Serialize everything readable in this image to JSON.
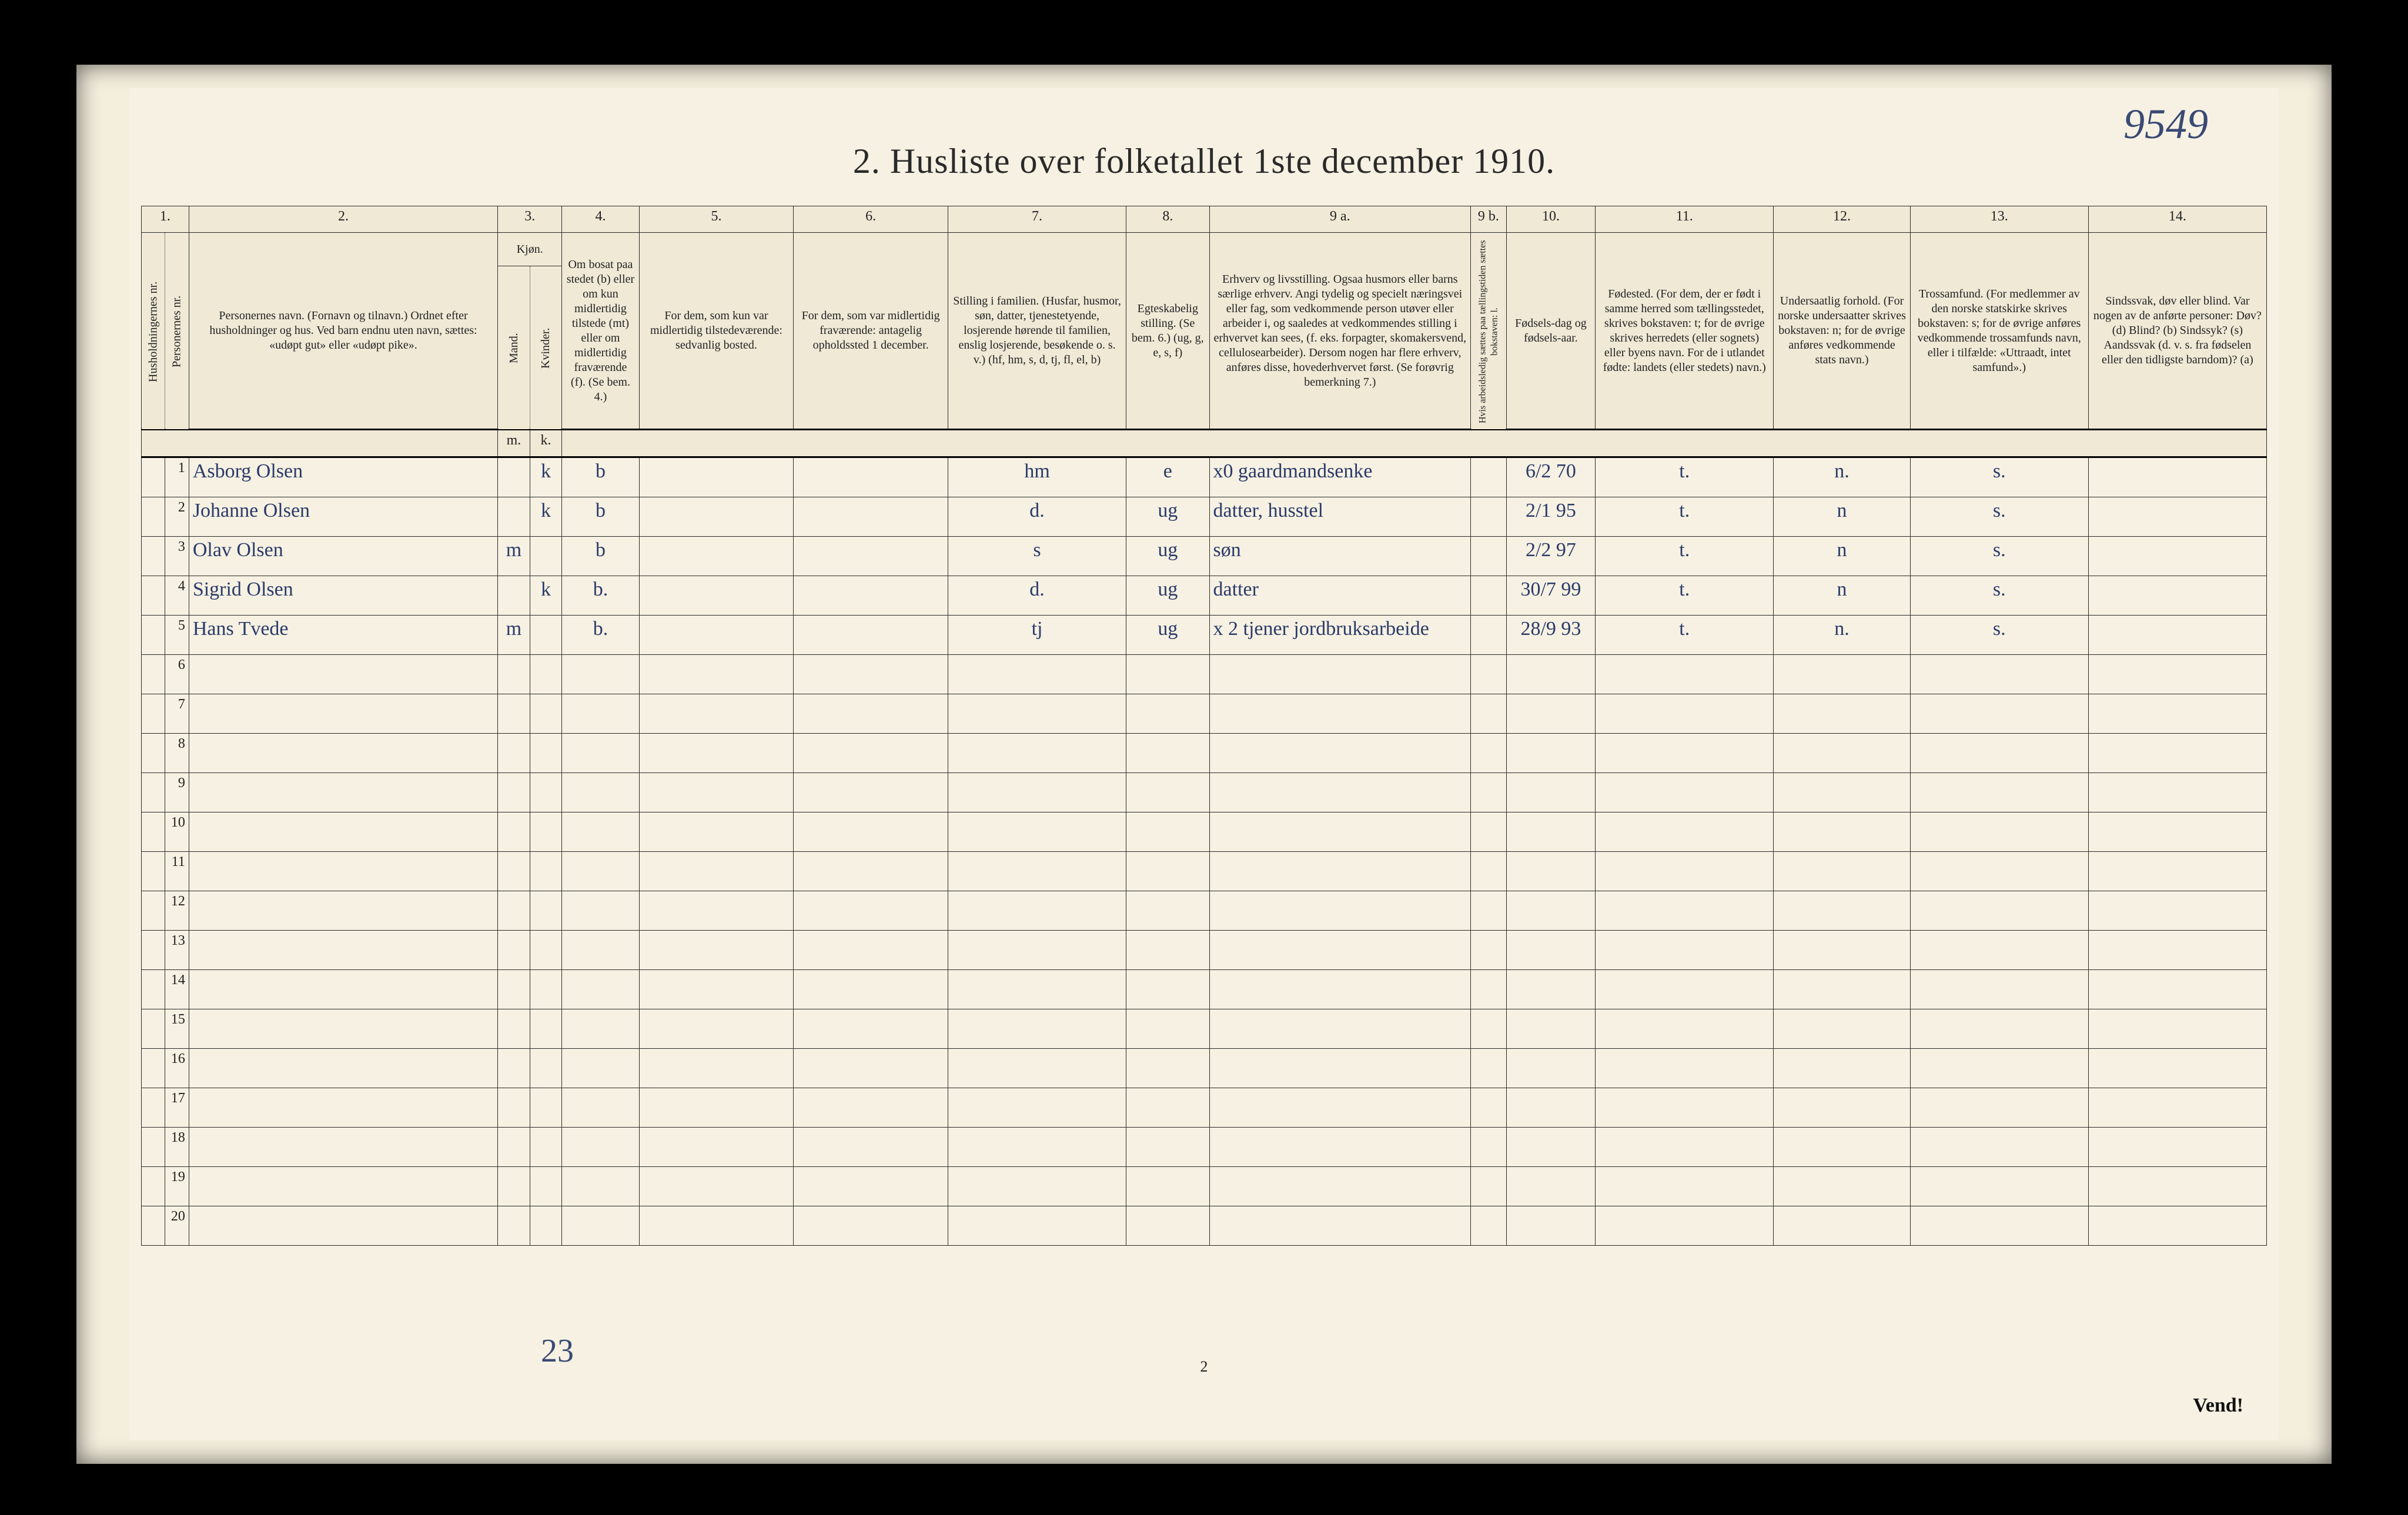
{
  "corner_number": "9549",
  "title": "2.  Husliste over folketallet 1ste december 1910.",
  "foot_number": "23",
  "page_number": "2",
  "vend": "Vend!",
  "col_nums": [
    "1.",
    "",
    "2.",
    "3.",
    "",
    "4.",
    "5.",
    "6.",
    "7.",
    "8.",
    "9 a.",
    "9 b.",
    "10.",
    "11.",
    "12.",
    "13.",
    "14."
  ],
  "headers": {
    "c1": "Husholdningernes nr.",
    "c1b": "Personernes nr.",
    "c2": "Personernes navn.\n(Fornavn og tilnavn.)\nOrdnet efter husholdninger og hus.\nVed barn endnu uten navn, sættes: «udøpt gut» eller «udøpt pike».",
    "c3": "Kjøn.",
    "c3a": "Mand.",
    "c3b": "Kvinder.",
    "c4": "Om bosat paa stedet (b) eller om kun midlertidig tilstede (mt) eller om midlertidig fraværende (f). (Se bem. 4.)",
    "c5": "For dem, som kun var midlertidig tilstedeværende:\nsedvanlig bosted.",
    "c6": "For dem, som var midlertidig fraværende:\nantagelig opholdssted 1 december.",
    "c7": "Stilling i familien.\n(Husfar, husmor, søn, datter, tjenestetyende, losjerende hørende til familien, enslig losjerende, besøkende o. s. v.)\n(hf, hm, s, d, tj, fl, el, b)",
    "c8": "Egteskabelig stilling. (Se bem. 6.)\n(ug, g, e, s, f)",
    "c9a": "Erhverv og livsstilling.\nOgsaa husmors eller barns særlige erhverv. Angi tydelig og specielt næringsvei eller fag, som vedkommende person utøver eller arbeider i, og saaledes at vedkommendes stilling i erhvervet kan sees, (f. eks. forpagter, skomakersvend, cellulosearbeider). Dersom nogen har flere erhverv, anføres disse, hovederhvervet først. (Se forøvrig bemerkning 7.)",
    "c9b": "Hvis arbeidsledig sættes paa tællingstiden sættes bokstaven: l.",
    "c10": "Fødsels-dag og fødsels-aar.",
    "c11": "Fødested.\n(For dem, der er født i samme herred som tællingsstedet, skrives bokstaven: t; for de øvrige skrives herredets (eller sognets) eller byens navn. For de i utlandet fødte: landets (eller stedets) navn.)",
    "c12": "Undersaatlig forhold.\n(For norske undersaatter skrives bokstaven: n; for de øvrige anføres vedkommende stats navn.)",
    "c13": "Trossamfund.\n(For medlemmer av den norske statskirke skrives bokstaven: s; for de øvrige anføres vedkommende trossamfunds navn, eller i tilfælde: «Uttraadt, intet samfund».)",
    "c14": "Sindssvak, døv eller blind.\nVar nogen av de anførte personer:\nDøv? (d)\nBlind? (b)\nSindssyk? (s)\nAandssvak (d. v. s. fra fødselen eller den tidligste barndom)? (a)"
  },
  "sub3": {
    "m": "m.",
    "k": "k."
  },
  "rows": [
    {
      "n": "1",
      "name": "Asborg Olsen",
      "m": "",
      "k": "k",
      "b": "b",
      "c5": "",
      "c6": "",
      "fam": "hm",
      "eg": "e",
      "erv": "x0  gaardmandsenke",
      "l": "",
      "fd": "6/2 70",
      "fs": "t.",
      "us": "n.",
      "tr": "s.",
      "sd": ""
    },
    {
      "n": "2",
      "name": "Johanne Olsen",
      "m": "",
      "k": "k",
      "b": "b",
      "c5": "",
      "c6": "",
      "fam": "d.",
      "eg": "ug",
      "erv": "datter, husstel",
      "l": "",
      "fd": "2/1 95",
      "fs": "t.",
      "us": "n",
      "tr": "s.",
      "sd": ""
    },
    {
      "n": "3",
      "name": "Olav Olsen",
      "m": "m",
      "k": "",
      "b": "b",
      "c5": "",
      "c6": "",
      "fam": "s",
      "eg": "ug",
      "erv": "søn",
      "l": "",
      "fd": "2/2 97",
      "fs": "t.",
      "us": "n",
      "tr": "s.",
      "sd": ""
    },
    {
      "n": "4",
      "name": "Sigrid Olsen",
      "m": "",
      "k": "k",
      "b": "b.",
      "c5": "",
      "c6": "",
      "fam": "d.",
      "eg": "ug",
      "erv": "datter",
      "l": "",
      "fd": "30/7 99",
      "fs": "t.",
      "us": "n",
      "tr": "s.",
      "sd": ""
    },
    {
      "n": "5",
      "name": "Hans Tvede",
      "m": "m",
      "k": "",
      "b": "b.",
      "c5": "",
      "c6": "",
      "fam": "tj",
      "eg": "ug",
      "erv": "x 2  tjener jordbruksarbeide",
      "l": "",
      "fd": "28/9 93",
      "fs": "t.",
      "us": "n.",
      "tr": "s.",
      "sd": ""
    },
    {
      "n": "6"
    },
    {
      "n": "7"
    },
    {
      "n": "8"
    },
    {
      "n": "9"
    },
    {
      "n": "10"
    },
    {
      "n": "11"
    },
    {
      "n": "12"
    },
    {
      "n": "13"
    },
    {
      "n": "14"
    },
    {
      "n": "15"
    },
    {
      "n": "16"
    },
    {
      "n": "17"
    },
    {
      "n": "18"
    },
    {
      "n": "19"
    },
    {
      "n": "20"
    }
  ]
}
